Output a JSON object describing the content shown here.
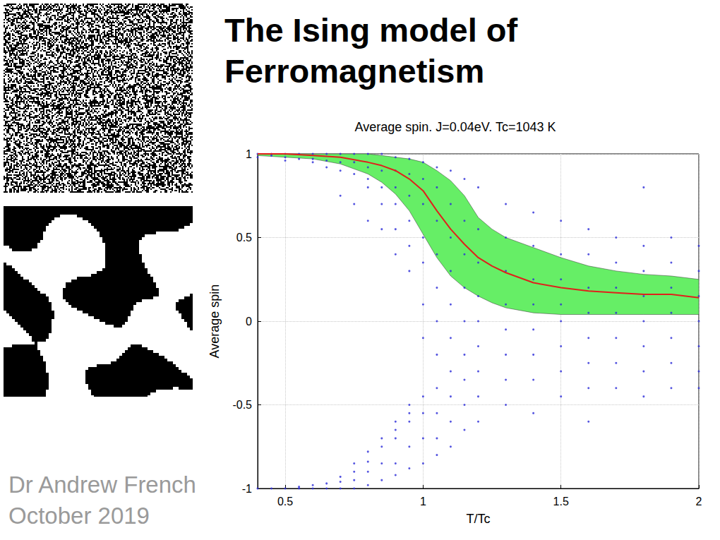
{
  "slide": {
    "title_lines": [
      "The Ising model of",
      "Ferromagnetism"
    ],
    "author": "Dr Andrew French",
    "date": "October 2019"
  },
  "chart_data": {
    "type": "scatter",
    "title": "Average spin. J=0.04eV. Tc=1043 K",
    "x_label": "T/Tc",
    "y_label": "Average spin",
    "xlim": [
      0.4,
      2
    ],
    "xticks": [
      0.5,
      1,
      1.5,
      2
    ],
    "ylim": [
      -1,
      1
    ],
    "yticks": [
      -1,
      -0.5,
      0,
      0.5,
      1
    ],
    "grid": true,
    "x": [
      0.4,
      0.5,
      0.6,
      0.7,
      0.8,
      0.85,
      0.9,
      0.95,
      1.0,
      1.05,
      1.1,
      1.15,
      1.2,
      1.25,
      1.3,
      1.4,
      1.5,
      1.6,
      1.7,
      1.8,
      1.9,
      2.0
    ],
    "series": [
      {
        "type": "band",
        "color": "#66ee66",
        "upper": [
          1.0,
          1.0,
          1.0,
          1.0,
          1.0,
          0.99,
          0.98,
          0.97,
          0.95,
          0.9,
          0.84,
          0.75,
          0.62,
          0.55,
          0.5,
          0.44,
          0.38,
          0.33,
          0.3,
          0.28,
          0.27,
          0.25
        ],
        "lower": [
          0.99,
          0.98,
          0.97,
          0.94,
          0.88,
          0.83,
          0.76,
          0.66,
          0.52,
          0.38,
          0.27,
          0.2,
          0.15,
          0.11,
          0.08,
          0.05,
          0.04,
          0.04,
          0.04,
          0.04,
          0.04,
          0.04
        ]
      },
      {
        "type": "scatter",
        "color": "#2a2ad8",
        "marker": "circle",
        "points": [
          [
            0.4,
            1
          ],
          [
            0.4,
            0.98
          ],
          [
            0.4,
            -1
          ],
          [
            0.45,
            1
          ],
          [
            0.45,
            0.99
          ],
          [
            0.45,
            -1
          ],
          [
            0.5,
            1
          ],
          [
            0.5,
            0.98
          ],
          [
            0.5,
            0.96
          ],
          [
            0.5,
            -1
          ],
          [
            0.55,
            1
          ],
          [
            0.55,
            0.97
          ],
          [
            0.55,
            -1
          ],
          [
            0.55,
            -0.99
          ],
          [
            0.6,
            1
          ],
          [
            0.6,
            0.97
          ],
          [
            0.6,
            0.95
          ],
          [
            0.6,
            -1
          ],
          [
            0.6,
            -0.98
          ],
          [
            0.65,
            1
          ],
          [
            0.65,
            0.96
          ],
          [
            0.65,
            0.92
          ],
          [
            0.65,
            -1
          ],
          [
            0.65,
            -0.97
          ],
          [
            0.7,
            1
          ],
          [
            0.7,
            0.95
          ],
          [
            0.7,
            0.9
          ],
          [
            0.7,
            0.75
          ],
          [
            0.7,
            -1
          ],
          [
            0.7,
            -0.96
          ],
          [
            0.7,
            -0.93
          ],
          [
            0.75,
            1
          ],
          [
            0.75,
            0.95
          ],
          [
            0.75,
            0.88
          ],
          [
            0.75,
            0.7
          ],
          [
            0.75,
            -1
          ],
          [
            0.75,
            -0.95
          ],
          [
            0.75,
            -0.9
          ],
          [
            0.75,
            -0.85
          ],
          [
            0.8,
            1
          ],
          [
            0.8,
            0.92
          ],
          [
            0.8,
            0.85
          ],
          [
            0.8,
            0.8
          ],
          [
            0.8,
            0.6
          ],
          [
            0.8,
            -0.98
          ],
          [
            0.8,
            -0.9
          ],
          [
            0.8,
            -0.84
          ],
          [
            0.8,
            -0.78
          ],
          [
            0.85,
            1
          ],
          [
            0.85,
            0.9
          ],
          [
            0.85,
            0.8
          ],
          [
            0.85,
            0.7
          ],
          [
            0.85,
            0.55
          ],
          [
            0.85,
            -0.95
          ],
          [
            0.85,
            -0.85
          ],
          [
            0.85,
            -0.75
          ],
          [
            0.85,
            -0.7
          ],
          [
            0.9,
            0.98
          ],
          [
            0.9,
            0.9
          ],
          [
            0.9,
            0.8
          ],
          [
            0.9,
            0.7
          ],
          [
            0.9,
            0.55
          ],
          [
            0.9,
            0.4
          ],
          [
            0.9,
            -0.92
          ],
          [
            0.9,
            -0.85
          ],
          [
            0.9,
            -0.7
          ],
          [
            0.9,
            -0.65
          ],
          [
            0.9,
            -0.6
          ],
          [
            0.95,
            0.97
          ],
          [
            0.95,
            0.88
          ],
          [
            0.95,
            0.75
          ],
          [
            0.95,
            0.6
          ],
          [
            0.95,
            0.45
          ],
          [
            0.95,
            0.3
          ],
          [
            0.95,
            -0.88
          ],
          [
            0.95,
            -0.75
          ],
          [
            0.95,
            -0.6
          ],
          [
            0.95,
            -0.55
          ],
          [
            0.95,
            -0.5
          ],
          [
            1.0,
            0.95
          ],
          [
            1.0,
            0.85
          ],
          [
            1.0,
            0.7
          ],
          [
            1.0,
            0.5
          ],
          [
            1.0,
            0.35
          ],
          [
            1.0,
            0.1
          ],
          [
            1.0,
            -0.1
          ],
          [
            1.0,
            -0.85
          ],
          [
            1.0,
            -0.7
          ],
          [
            1.0,
            -0.55
          ],
          [
            1.0,
            -0.45
          ],
          [
            1.05,
            0.92
          ],
          [
            1.05,
            0.8
          ],
          [
            1.05,
            0.6
          ],
          [
            1.05,
            0.4
          ],
          [
            1.05,
            0.2
          ],
          [
            1.05,
            0
          ],
          [
            1.05,
            -0.2
          ],
          [
            1.05,
            -0.4
          ],
          [
            1.05,
            -0.55
          ],
          [
            1.05,
            -0.7
          ],
          [
            1.05,
            -0.8
          ],
          [
            1.1,
            0.9
          ],
          [
            1.1,
            0.7
          ],
          [
            1.1,
            0.5
          ],
          [
            1.1,
            0.3
          ],
          [
            1.1,
            0.1
          ],
          [
            1.1,
            -0.1
          ],
          [
            1.1,
            -0.3
          ],
          [
            1.1,
            -0.45
          ],
          [
            1.1,
            -0.6
          ],
          [
            1.1,
            -0.75
          ],
          [
            1.15,
            0.85
          ],
          [
            1.15,
            0.6
          ],
          [
            1.15,
            0.4
          ],
          [
            1.15,
            0.2
          ],
          [
            1.15,
            0
          ],
          [
            1.15,
            -0.2
          ],
          [
            1.15,
            -0.35
          ],
          [
            1.15,
            -0.5
          ],
          [
            1.15,
            -0.65
          ],
          [
            1.2,
            0.8
          ],
          [
            1.2,
            0.55
          ],
          [
            1.2,
            0.35
          ],
          [
            1.2,
            0.15
          ],
          [
            1.2,
            0
          ],
          [
            1.2,
            -0.15
          ],
          [
            1.2,
            -0.3
          ],
          [
            1.2,
            -0.45
          ],
          [
            1.2,
            -0.6
          ],
          [
            1.3,
            0.7
          ],
          [
            1.3,
            0.5
          ],
          [
            1.3,
            0.3
          ],
          [
            1.3,
            0.1
          ],
          [
            1.3,
            -0.05
          ],
          [
            1.3,
            -0.2
          ],
          [
            1.3,
            -0.35
          ],
          [
            1.3,
            -0.5
          ],
          [
            1.4,
            0.65
          ],
          [
            1.4,
            0.45
          ],
          [
            1.4,
            0.25
          ],
          [
            1.4,
            0.1
          ],
          [
            1.4,
            -0.05
          ],
          [
            1.4,
            -0.2
          ],
          [
            1.4,
            -0.35
          ],
          [
            1.4,
            -0.55
          ],
          [
            1.5,
            0.6
          ],
          [
            1.5,
            0.4
          ],
          [
            1.5,
            0.25
          ],
          [
            1.5,
            0.1
          ],
          [
            1.5,
            0
          ],
          [
            1.5,
            -0.15
          ],
          [
            1.5,
            -0.3
          ],
          [
            1.5,
            -0.45
          ],
          [
            1.6,
            0.55
          ],
          [
            1.6,
            0.4
          ],
          [
            1.6,
            0.2
          ],
          [
            1.6,
            0.05
          ],
          [
            1.6,
            -0.1
          ],
          [
            1.6,
            -0.25
          ],
          [
            1.6,
            -0.4
          ],
          [
            1.6,
            -0.6
          ],
          [
            1.7,
            0.5
          ],
          [
            1.7,
            0.35
          ],
          [
            1.7,
            0.2
          ],
          [
            1.7,
            0.05
          ],
          [
            1.7,
            -0.1
          ],
          [
            1.7,
            -0.25
          ],
          [
            1.7,
            -0.4
          ],
          [
            1.8,
            0.8
          ],
          [
            1.8,
            0.45
          ],
          [
            1.8,
            0.3
          ],
          [
            1.8,
            0.15
          ],
          [
            1.8,
            0
          ],
          [
            1.8,
            -0.15
          ],
          [
            1.8,
            -0.3
          ],
          [
            1.8,
            -0.45
          ],
          [
            1.9,
            0.5
          ],
          [
            1.9,
            0.35
          ],
          [
            1.9,
            0.2
          ],
          [
            1.9,
            0.05
          ],
          [
            1.9,
            -0.1
          ],
          [
            1.9,
            -0.25
          ],
          [
            1.9,
            -0.4
          ],
          [
            2.0,
            0.45
          ],
          [
            2.0,
            0.3
          ],
          [
            2.0,
            0.15
          ],
          [
            2.0,
            0
          ],
          [
            2.0,
            -0.15
          ],
          [
            2.0,
            -0.3
          ],
          [
            2.0,
            -0.4
          ]
        ]
      },
      {
        "type": "line",
        "color": "#e0201b",
        "values": [
          1.0,
          1.0,
          0.99,
          0.98,
          0.95,
          0.93,
          0.9,
          0.85,
          0.78,
          0.66,
          0.55,
          0.46,
          0.38,
          0.33,
          0.29,
          0.23,
          0.2,
          0.18,
          0.17,
          0.16,
          0.16,
          0.14
        ]
      }
    ]
  }
}
